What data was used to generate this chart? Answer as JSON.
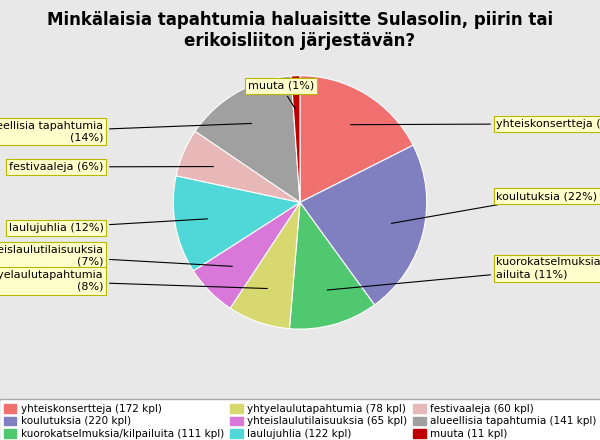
{
  "title": "Minkälaisia tapahtumia haluaisitte Sulasolin, piirin tai\nerikoisliiton järjestävän?",
  "slices": [
    {
      "label": "yhteiskonsertteja",
      "value": 172,
      "pct": 18,
      "color": "#f07070"
    },
    {
      "label": "koulutuksia",
      "value": 220,
      "pct": 22,
      "color": "#8080c0"
    },
    {
      "label": "kuorokatselmuksia/kilpailuita",
      "value": 111,
      "pct": 11,
      "color": "#50c870"
    },
    {
      "label": "yhtyelaulutapahtumia",
      "value": 78,
      "pct": 8,
      "color": "#d8d870"
    },
    {
      "label": "yhteislaulutilaisuuksia",
      "value": 65,
      "pct": 7,
      "color": "#d878d8"
    },
    {
      "label": "laulujuhlia",
      "value": 122,
      "pct": 12,
      "color": "#50d8d8"
    },
    {
      "label": "festivaaleja",
      "value": 60,
      "pct": 6,
      "color": "#e8b8b8"
    },
    {
      "label": "alueellisia tapahtumia",
      "value": 141,
      "pct": 14,
      "color": "#a0a0a0"
    },
    {
      "label": "muuta",
      "value": 11,
      "pct": 1,
      "color": "#c00000"
    }
  ],
  "legend_labels": [
    "yhteiskonsertteja (172 kpl)",
    "koulutuksia (220 kpl)",
    "kuorokatselmuksia/kilpailuita (111 kpl)",
    "yhtyelaulutapahtumia (78 kpl)",
    "yhteislaulutilaisuuksia (65 kpl)",
    "laulujuhlia (122 kpl)",
    "festivaaleja (60 kpl)",
    "alueellisia tapahtumia (141 kpl)",
    "muuta (11 kpl)"
  ],
  "background_color": "#e8e8e8",
  "label_fontsize": 8,
  "title_fontsize": 12
}
